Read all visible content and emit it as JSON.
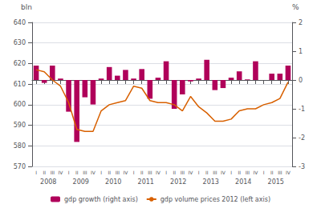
{
  "chart_data": {
    "type": "bar",
    "categories": [
      "I",
      "II",
      "III",
      "IV",
      "I",
      "II",
      "III",
      "IV",
      "I",
      "II",
      "III",
      "IV",
      "I",
      "II",
      "III",
      "IV",
      "I",
      "II",
      "III",
      "IV",
      "I",
      "II",
      "III",
      "IV",
      "I",
      "II",
      "III",
      "IV",
      "I",
      "II",
      "III",
      "IV"
    ],
    "annotations": [
      "2008",
      "2009",
      "2010",
      "2011",
      "2012",
      "2013",
      "2014",
      "2015"
    ],
    "ylabel": "bln",
    "y2label": "%",
    "ylim": [
      570,
      640
    ],
    "yticks": [
      570,
      580,
      590,
      600,
      610,
      620,
      630,
      640
    ],
    "y2lim": [
      -3,
      2
    ],
    "y2ticks": [
      -3,
      -2,
      -1,
      0,
      1,
      2
    ],
    "grid": true,
    "legend": "bottom",
    "series": [
      {
        "name": "gdp growth (right axis)",
        "type": "bar",
        "axis": "y2",
        "color": "#b0005a",
        "values": [
          0.5,
          -0.1,
          0.5,
          0.05,
          -1.1,
          -2.15,
          -0.6,
          -0.85,
          0.05,
          0.45,
          0.15,
          0.35,
          0.05,
          0.38,
          -0.65,
          0.08,
          0.65,
          -1.0,
          -0.5,
          -0.05,
          0.05,
          0.7,
          -0.35,
          -0.28,
          0.08,
          0.3,
          0.02,
          0.65,
          0.0,
          0.22,
          0.22,
          0.5
        ]
      },
      {
        "name": "gdp volume prices 2012 (left axis)",
        "type": "line",
        "color": "#d86000",
        "values": [
          617,
          616,
          612,
          609,
          601,
          588,
          587,
          587,
          597,
          600,
          601,
          602,
          609,
          608,
          602,
          601,
          601,
          600,
          597,
          604,
          599,
          596,
          592,
          592,
          593,
          597,
          598,
          598,
          600,
          601,
          603,
          611
        ]
      }
    ]
  }
}
